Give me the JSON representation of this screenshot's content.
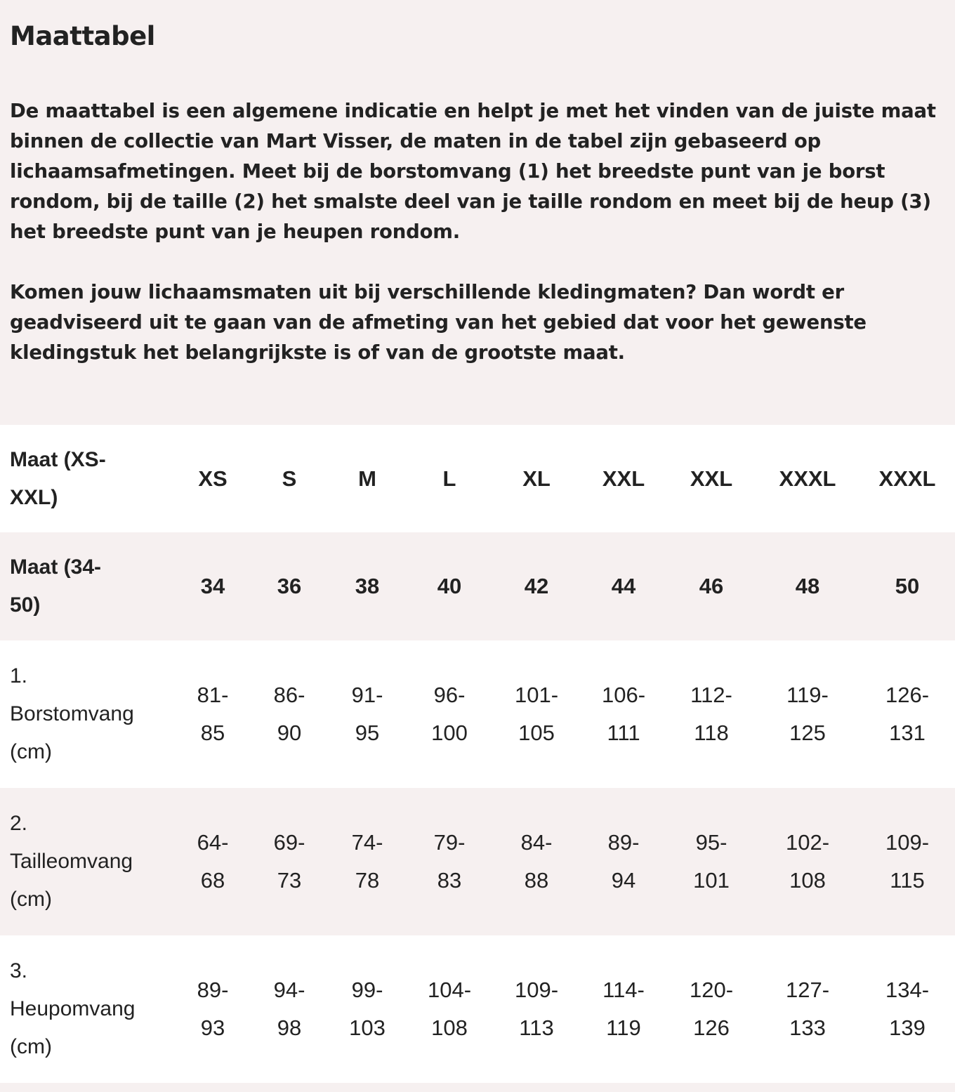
{
  "title": "Maattabel",
  "paragraphs": [
    "De maattabel is een algemene indicatie en helpt je met het vinden van de juiste maat binnen de collectie van Mart Visser, de maten in de tabel zijn gebaseerd op lichaamsafmetingen. Meet bij de borstomvang (1) het breedste punt van je borst rondom, bij de taille (2) het smalste deel van je taille rondom en meet bij de heup (3) het breedste punt van je heupen rondom.",
    "Komen jouw lichaamsmaten uit bij verschillende kledingmaten? Dan wordt er geadviseerd uit te gaan van de afmeting van het gebied dat voor het gewenste kledingstuk het belangrijkste is of van de grootste maat."
  ],
  "table": {
    "rows": [
      {
        "label": " Maat (XS-\nXXL)",
        "cells": [
          "XS",
          "S",
          "M",
          "L",
          "XL",
          "XXL",
          "XXL",
          "XXXL",
          "XXXL"
        ]
      },
      {
        "label": "Maat (34-\n50)",
        "cells": [
          "34",
          "36",
          "38",
          "40",
          "42",
          "44",
          "46",
          "48",
          "50"
        ]
      },
      {
        "label": "1.\nBorstomvang\n(cm)",
        "cells": [
          "81-\n85",
          "86-\n90",
          "91-\n95",
          "96-\n100",
          "101-\n105",
          "106-\n111",
          "112-\n118",
          "119-\n125",
          "126-\n131"
        ]
      },
      {
        "label": "2.\nTailleomvang\n(cm)",
        "cells": [
          "64-\n68",
          "69-\n73",
          "74-\n78",
          "79-\n83",
          "84-\n88",
          "89-\n94",
          "95-\n101",
          "102-\n108",
          "109-\n115"
        ]
      },
      {
        "label": "3.\nHeupomvang\n(cm)",
        "cells": [
          "89-\n93",
          "94-\n98",
          "99-\n103",
          "104-\n108",
          "109-\n113",
          "114-\n119",
          "120-\n126",
          "127-\n133",
          "134-\n139"
        ]
      }
    ]
  }
}
